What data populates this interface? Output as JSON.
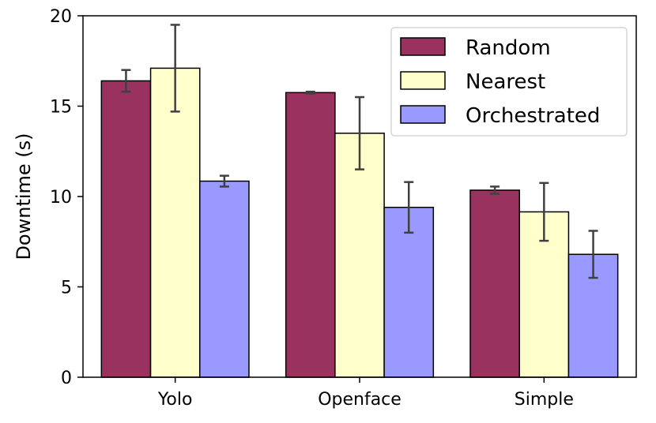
{
  "chart_data": {
    "type": "bar",
    "title": "",
    "xlabel": "",
    "ylabel": "Downtime (s)",
    "ylim": [
      0,
      20
    ],
    "yticks": [
      0,
      5,
      10,
      15,
      20
    ],
    "categories": [
      "Yolo",
      "Openface",
      "Simple"
    ],
    "series": [
      {
        "name": "Random",
        "color": "#99325f",
        "values": [
          16.4,
          15.75,
          10.35
        ],
        "errors": [
          0.6,
          0.05,
          0.2
        ]
      },
      {
        "name": "Nearest",
        "color": "#ffffcc",
        "values": [
          17.1,
          13.5,
          9.15
        ],
        "errors": [
          2.4,
          2.0,
          1.6
        ]
      },
      {
        "name": "Orchestrated",
        "color": "#9999ff",
        "values": [
          10.85,
          9.4,
          6.8
        ],
        "errors": [
          0.3,
          1.4,
          1.3
        ]
      }
    ],
    "legend": {
      "position": "top-right"
    },
    "grid": false,
    "error_bar_color": "#404040"
  }
}
